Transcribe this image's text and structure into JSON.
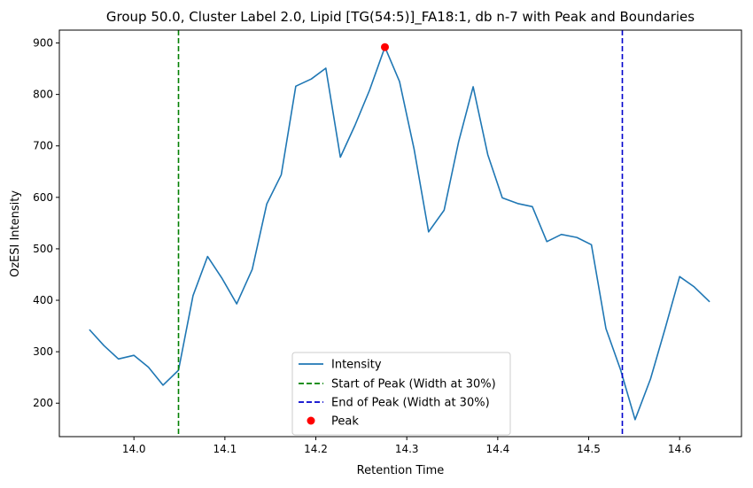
{
  "chart_data": {
    "type": "line",
    "title": "Group 50.0, Cluster Label 2.0, Lipid [TG(54:5)]_FA18:1, db n-7 with Peak and Boundaries",
    "xlabel": "Retention Time",
    "ylabel": "OzESI Intensity",
    "xlim": [
      13.918,
      14.668
    ],
    "ylim": [
      135,
      925
    ],
    "xticks": [
      14.0,
      14.1,
      14.2,
      14.3,
      14.4,
      14.5,
      14.6
    ],
    "xtick_labels": [
      "14.0",
      "14.1",
      "14.2",
      "14.3",
      "14.4",
      "14.5",
      "14.6"
    ],
    "yticks": [
      200,
      300,
      400,
      500,
      600,
      700,
      800,
      900
    ],
    "ytick_labels": [
      "200",
      "300",
      "400",
      "500",
      "600",
      "700",
      "800",
      "900"
    ],
    "grid": false,
    "legend_position": "lower-center",
    "series": [
      {
        "name": "Intensity",
        "color": "#1f77b4",
        "x": [
          13.951,
          13.967,
          13.983,
          14.0,
          14.016,
          14.032,
          14.049,
          14.065,
          14.081,
          14.097,
          14.113,
          14.13,
          14.146,
          14.162,
          14.178,
          14.195,
          14.211,
          14.227,
          14.243,
          14.259,
          14.276,
          14.292,
          14.308,
          14.324,
          14.341,
          14.357,
          14.373,
          14.389,
          14.405,
          14.422,
          14.438,
          14.454,
          14.47,
          14.487,
          14.503,
          14.519,
          14.535,
          14.551,
          14.568,
          14.584,
          14.6,
          14.616,
          14.633
        ],
        "y": [
          343,
          312,
          286,
          293,
          270,
          235,
          264,
          409,
          485,
          442,
          393,
          460,
          587,
          644,
          816,
          830,
          851,
          678,
          740,
          808,
          892,
          825,
          694,
          533,
          575,
          708,
          815,
          683,
          599,
          588,
          582,
          514,
          528,
          522,
          508,
          345,
          265,
          168,
          247,
          345,
          446,
          426,
          397
        ]
      }
    ],
    "vlines": [
      {
        "name": "Start of Peak (Width at 30%)",
        "x": 14.049,
        "color": "#008000",
        "style": "dashed"
      },
      {
        "name": "End of Peak (Width at 30%)",
        "x": 14.537,
        "color": "#0000cc",
        "style": "dashed"
      }
    ],
    "peak": {
      "name": "Peak",
      "x": 14.276,
      "y": 892,
      "color": "#ff0000"
    }
  }
}
